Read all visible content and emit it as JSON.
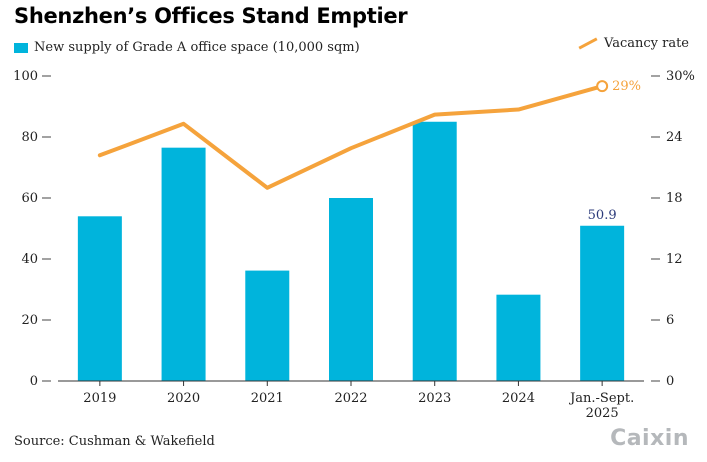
{
  "chart_data": {
    "type": "bar+line",
    "title": "Shenzhen’s Offices Stand Emptier",
    "categories": [
      "2019",
      "2020",
      "2021",
      "2022",
      "2023",
      "2024",
      "Jan.-Sept.\n2025"
    ],
    "series": [
      {
        "name": "New supply of Grade A office space (10,000 sqm)",
        "type": "bar",
        "axis": "left",
        "color": "#00b4dc",
        "values": [
          54,
          76.5,
          36.2,
          60,
          85,
          28.3,
          50.9
        ]
      },
      {
        "name": "Vacancy rate",
        "type": "line",
        "axis": "right",
        "color": "#f5a33c",
        "values": [
          22.2,
          25.3,
          19,
          22.9,
          26.2,
          26.7,
          29
        ]
      }
    ],
    "left_axis": {
      "ylim": [
        0,
        100
      ],
      "ticks": [
        "0",
        "20",
        "40",
        "60",
        "80",
        "100"
      ]
    },
    "right_axis": {
      "ylim": [
        0,
        30
      ],
      "ticks": [
        "0",
        "6",
        "12",
        "18",
        "24",
        "30%"
      ]
    },
    "annotations": [
      {
        "text": "50.9",
        "series": "bar",
        "index": 6,
        "color": "#2b3a7a"
      },
      {
        "text": "29%",
        "series": "line",
        "index": 6,
        "color": "#f5a33c"
      }
    ],
    "source": "Source: Cushman & Wakefield",
    "brand": "Caixin"
  }
}
